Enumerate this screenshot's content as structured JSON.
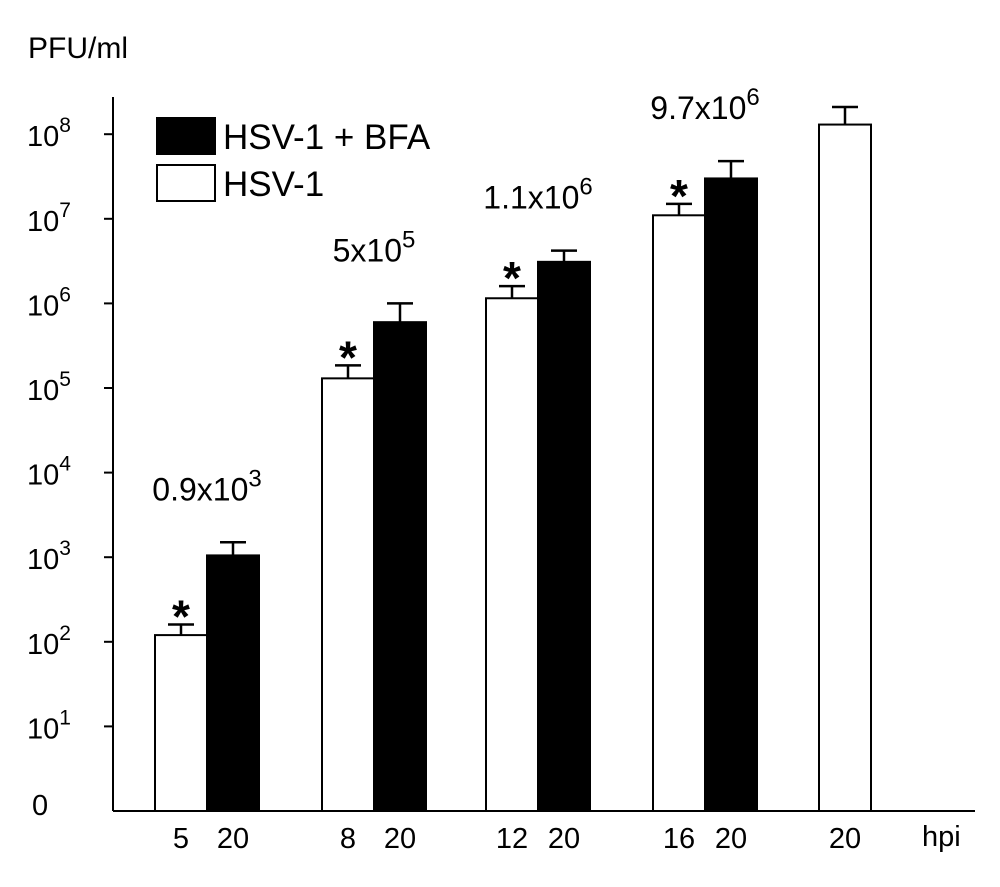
{
  "chart_data": {
    "type": "bar",
    "scale": "log",
    "ylabel": "PFU/ml",
    "xlabel": "hpi",
    "y_ticks": [
      {
        "base": "0",
        "exp": ""
      },
      {
        "base": "10",
        "exp": "1"
      },
      {
        "base": "10",
        "exp": "2"
      },
      {
        "base": "10",
        "exp": "3"
      },
      {
        "base": "10",
        "exp": "4"
      },
      {
        "base": "10",
        "exp": "5"
      },
      {
        "base": "10",
        "exp": "6"
      },
      {
        "base": "10",
        "exp": "7"
      },
      {
        "base": "10",
        "exp": "8"
      }
    ],
    "legend": {
      "placement": "top-left",
      "entries": [
        {
          "label": "HSV-1 + BFA",
          "fill": "#000000"
        },
        {
          "label": "HSV-1",
          "fill": "#ffffff"
        }
      ]
    },
    "groups": [
      {
        "bars": [
          {
            "category": "5",
            "series": "HSV-1",
            "value": 120,
            "error_high": 160
          },
          {
            "category": "20",
            "series": "HSV-1 + BFA",
            "value": 1050,
            "error_high": 1500
          }
        ],
        "significance": "*",
        "annotation": {
          "base": "0.9x10",
          "exp": "3"
        }
      },
      {
        "bars": [
          {
            "category": "8",
            "series": "HSV-1",
            "value": 130000,
            "error_high": 185000
          },
          {
            "category": "20",
            "series": "HSV-1 + BFA",
            "value": 600000,
            "error_high": 1000000
          }
        ],
        "significance": "*",
        "annotation": {
          "base": "5x10",
          "exp": "5"
        }
      },
      {
        "bars": [
          {
            "category": "12",
            "series": "HSV-1",
            "value": 1150000,
            "error_high": 1600000
          },
          {
            "category": "20",
            "series": "HSV-1 + BFA",
            "value": 3100000,
            "error_high": 4200000
          }
        ],
        "significance": "*",
        "annotation": {
          "base": "1.1x10",
          "exp": "6"
        }
      },
      {
        "bars": [
          {
            "category": "16",
            "series": "HSV-1",
            "value": 11000000,
            "error_high": 15000000
          },
          {
            "category": "20",
            "series": "HSV-1 + BFA",
            "value": 30000000,
            "error_high": 48000000
          }
        ],
        "significance": "*",
        "annotation": {
          "base": "9.7x10",
          "exp": "6"
        }
      },
      {
        "bars": [
          {
            "category": "20",
            "series": "HSV-1",
            "value": 130000000,
            "error_high": 210000000
          }
        ],
        "significance": "",
        "annotation": null
      }
    ]
  }
}
